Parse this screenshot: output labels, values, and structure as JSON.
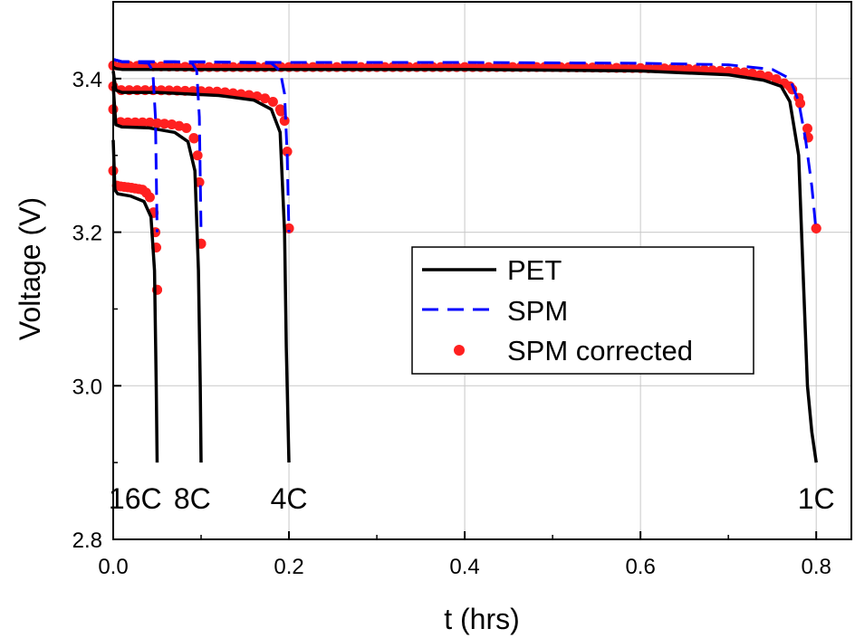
{
  "chart_data": {
    "type": "line",
    "xlabel": "t (hrs)",
    "ylabel": "Voltage (V)",
    "xlim": [
      0.0,
      0.84
    ],
    "ylim": [
      2.8,
      3.5
    ],
    "x_ticks": [
      0.0,
      0.2,
      0.4,
      0.6,
      0.8
    ],
    "x_tick_labels": [
      "0.0",
      "0.2",
      "0.4",
      "0.6",
      "0.8"
    ],
    "y_ticks": [
      2.8,
      3.0,
      3.2,
      3.4
    ],
    "y_tick_labels": [
      "2.8",
      "3.0",
      "3.2",
      "3.4"
    ],
    "grid": true,
    "legend": {
      "placement": "center-right",
      "entries": [
        {
          "label": "PET",
          "style": "solid",
          "color": "#000000"
        },
        {
          "label": "SPM",
          "style": "dashed",
          "color": "#0000ff"
        },
        {
          "label": "SPM corrected",
          "style": "dots",
          "color": "#ff0000"
        }
      ]
    },
    "annotations": [
      {
        "text": "16C",
        "x": 0.025,
        "y": 2.84
      },
      {
        "text": "8C",
        "x": 0.09,
        "y": 2.84
      },
      {
        "text": "4C",
        "x": 0.2,
        "y": 2.84
      },
      {
        "text": "1C",
        "x": 0.8,
        "y": 2.84
      }
    ],
    "series": [
      {
        "name": "PET 1C",
        "legend": "PET",
        "color": "#000000",
        "x": [
          0.0,
          0.003,
          0.01,
          0.05,
          0.2,
          0.4,
          0.6,
          0.7,
          0.74,
          0.76,
          0.77,
          0.78,
          0.785,
          0.79,
          0.795,
          0.8
        ],
        "y": [
          3.415,
          3.413,
          3.412,
          3.412,
          3.412,
          3.412,
          3.41,
          3.405,
          3.398,
          3.39,
          3.37,
          3.3,
          3.15,
          3.0,
          2.94,
          2.9
        ]
      },
      {
        "name": "PET 4C",
        "legend": "PET",
        "color": "#000000",
        "x": [
          0.0,
          0.003,
          0.01,
          0.05,
          0.12,
          0.16,
          0.18,
          0.19,
          0.195,
          0.197,
          0.2
        ],
        "y": [
          3.41,
          3.385,
          3.382,
          3.382,
          3.378,
          3.372,
          3.36,
          3.33,
          3.2,
          3.05,
          2.9
        ]
      },
      {
        "name": "PET 8C",
        "legend": "PET",
        "color": "#000000",
        "x": [
          0.0,
          0.003,
          0.01,
          0.04,
          0.07,
          0.085,
          0.093,
          0.097,
          0.099,
          0.1
        ],
        "y": [
          3.39,
          3.34,
          3.337,
          3.336,
          3.33,
          3.318,
          3.28,
          3.15,
          3.0,
          2.9
        ]
      },
      {
        "name": "PET 16C",
        "legend": "PET",
        "color": "#000000",
        "x": [
          0.0,
          0.002,
          0.005,
          0.02,
          0.035,
          0.043,
          0.047,
          0.049,
          0.05
        ],
        "y": [
          3.32,
          3.255,
          3.25,
          3.247,
          3.24,
          3.22,
          3.15,
          3.0,
          2.9
        ]
      },
      {
        "name": "SPM 1C",
        "legend": "SPM",
        "color": "#0000ff",
        "x": [
          0.0,
          0.01,
          0.2,
          0.4,
          0.6,
          0.7,
          0.75,
          0.77,
          0.78,
          0.788,
          0.795,
          0.8
        ],
        "y": [
          3.425,
          3.422,
          3.421,
          3.421,
          3.42,
          3.418,
          3.412,
          3.4,
          3.37,
          3.32,
          3.26,
          3.2
        ]
      },
      {
        "name": "SPM 4C",
        "legend": "SPM",
        "color": "#0000ff",
        "x": [
          0.0,
          0.01,
          0.1,
          0.18,
          0.19,
          0.195,
          0.198,
          0.2
        ],
        "y": [
          3.425,
          3.422,
          3.422,
          3.42,
          3.41,
          3.38,
          3.3,
          3.2
        ]
      },
      {
        "name": "SPM 8C",
        "legend": "SPM",
        "color": "#0000ff",
        "x": [
          0.0,
          0.01,
          0.07,
          0.09,
          0.095,
          0.098,
          0.1
        ],
        "y": [
          3.425,
          3.422,
          3.422,
          3.42,
          3.41,
          3.35,
          3.2
        ]
      },
      {
        "name": "SPM 16C",
        "legend": "SPM",
        "color": "#0000ff",
        "x": [
          0.0,
          0.01,
          0.04,
          0.045,
          0.048,
          0.05
        ],
        "y": [
          3.425,
          3.422,
          3.42,
          3.41,
          3.35,
          3.2
        ]
      },
      {
        "name": "SPM corrected 1C",
        "legend": "SPM corrected",
        "color": "#ff0000",
        "x": [
          0.0,
          0.1,
          0.3,
          0.5,
          0.65,
          0.72,
          0.75,
          0.77,
          0.78,
          0.79,
          0.8
        ],
        "y": [
          3.417,
          3.415,
          3.415,
          3.415,
          3.413,
          3.408,
          3.402,
          3.39,
          3.375,
          3.335,
          3.205
        ]
      },
      {
        "name": "SPM corrected 4C",
        "legend": "SPM corrected",
        "color": "#ff0000",
        "x": [
          0.0,
          0.003,
          0.01,
          0.05,
          0.12,
          0.16,
          0.18,
          0.19,
          0.195,
          0.198,
          0.2
        ],
        "y": [
          3.39,
          3.385,
          3.385,
          3.385,
          3.383,
          3.378,
          3.372,
          3.36,
          3.345,
          3.305,
          3.205
        ]
      },
      {
        "name": "SPM corrected 8C",
        "legend": "SPM corrected",
        "color": "#ff0000",
        "x": [
          0.0,
          0.003,
          0.01,
          0.04,
          0.07,
          0.085,
          0.092,
          0.096,
          0.098,
          0.1
        ],
        "y": [
          3.36,
          3.345,
          3.343,
          3.343,
          3.34,
          3.335,
          3.322,
          3.3,
          3.265,
          3.185
        ]
      },
      {
        "name": "SPM corrected 16C",
        "legend": "SPM corrected",
        "color": "#ff0000",
        "x": [
          0.0,
          0.002,
          0.005,
          0.02,
          0.035,
          0.042,
          0.046,
          0.048,
          0.049,
          0.05
        ],
        "y": [
          3.28,
          3.262,
          3.26,
          3.258,
          3.255,
          3.245,
          3.225,
          3.2,
          3.18,
          3.125
        ]
      }
    ]
  }
}
